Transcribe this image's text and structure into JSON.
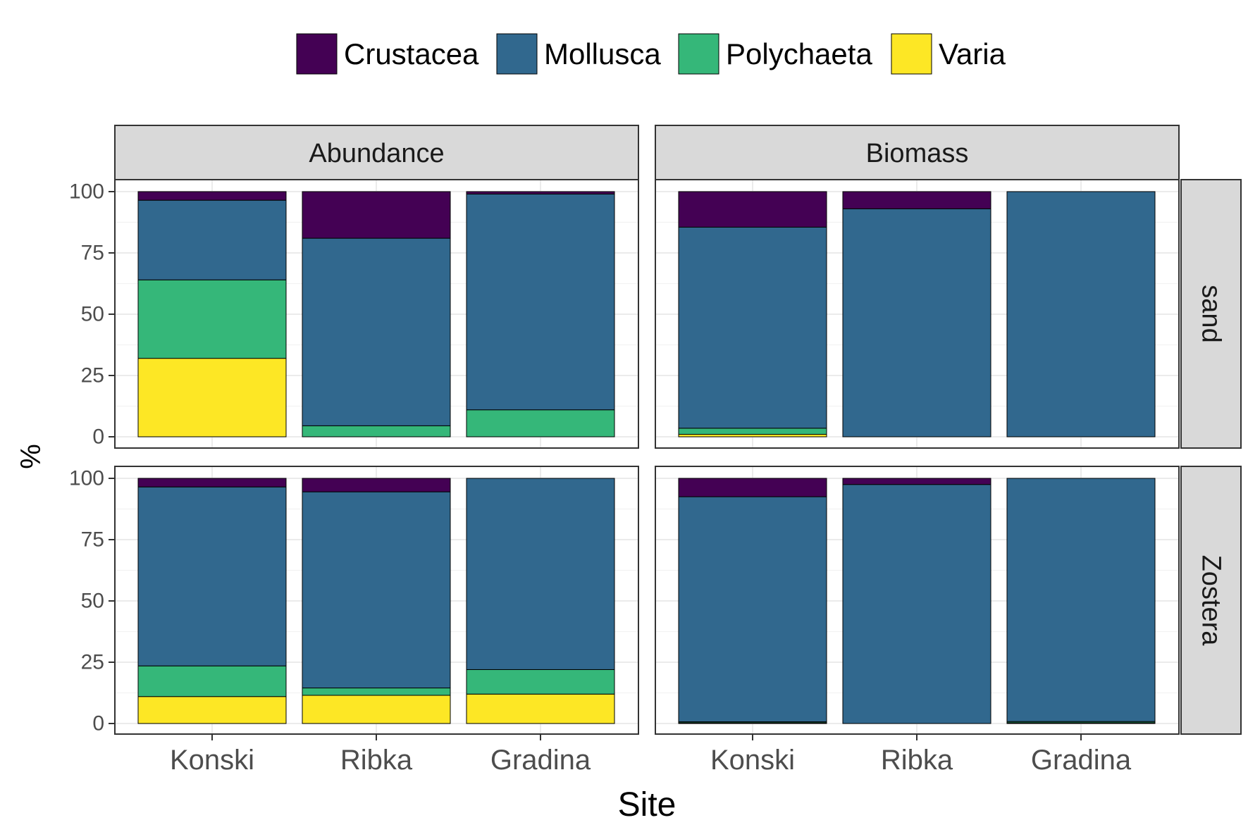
{
  "chart_data": {
    "type": "bar",
    "stacked": true,
    "title": "",
    "xlabel": "Site",
    "ylabel": "%",
    "ylim": [
      0,
      100
    ],
    "yticks": [
      0,
      25,
      50,
      75,
      100
    ],
    "categories": [
      "Konski",
      "Ribka",
      "Gradina"
    ],
    "facet_columns": [
      "Abundance",
      "Biomass"
    ],
    "facet_rows": [
      "sand",
      "Zostera"
    ],
    "grid": true,
    "legend_position": "top",
    "legend": [
      {
        "name": "Crustacea",
        "color": "#440154"
      },
      {
        "name": "Mollusca",
        "color": "#31688E"
      },
      {
        "name": "Polychaeta",
        "color": "#35B779"
      },
      {
        "name": "Varia",
        "color": "#FDE725"
      }
    ],
    "panels": [
      {
        "column": "Abundance",
        "row": "sand",
        "series": [
          {
            "name": "Varia",
            "values": [
              32,
              0,
              0
            ]
          },
          {
            "name": "Polychaeta",
            "values": [
              32,
              4.5,
              11
            ]
          },
          {
            "name": "Mollusca",
            "values": [
              32.5,
              76.5,
              88
            ]
          },
          {
            "name": "Crustacea",
            "values": [
              3.5,
              19,
              1
            ]
          }
        ]
      },
      {
        "column": "Biomass",
        "row": "sand",
        "series": [
          {
            "name": "Varia",
            "values": [
              1,
              0,
              0
            ]
          },
          {
            "name": "Polychaeta",
            "values": [
              2.5,
              0,
              0
            ]
          },
          {
            "name": "Mollusca",
            "values": [
              82,
              93,
              100
            ]
          },
          {
            "name": "Crustacea",
            "values": [
              14.5,
              7,
              0
            ]
          }
        ]
      },
      {
        "column": "Abundance",
        "row": "Zostera",
        "series": [
          {
            "name": "Varia",
            "values": [
              11,
              11.5,
              12
            ]
          },
          {
            "name": "Polychaeta",
            "values": [
              12.5,
              3,
              10
            ]
          },
          {
            "name": "Mollusca",
            "values": [
              73,
              80,
              78
            ]
          },
          {
            "name": "Crustacea",
            "values": [
              3.5,
              5.5,
              0
            ]
          }
        ]
      },
      {
        "column": "Biomass",
        "row": "Zostera",
        "series": [
          {
            "name": "Varia",
            "values": [
              0.3,
              0,
              0.3
            ]
          },
          {
            "name": "Polychaeta",
            "values": [
              0.4,
              0,
              0.5
            ]
          },
          {
            "name": "Mollusca",
            "values": [
              91.8,
              97.5,
              99.2
            ]
          },
          {
            "name": "Crustacea",
            "values": [
              7.5,
              2.5,
              0
            ]
          }
        ]
      }
    ]
  }
}
